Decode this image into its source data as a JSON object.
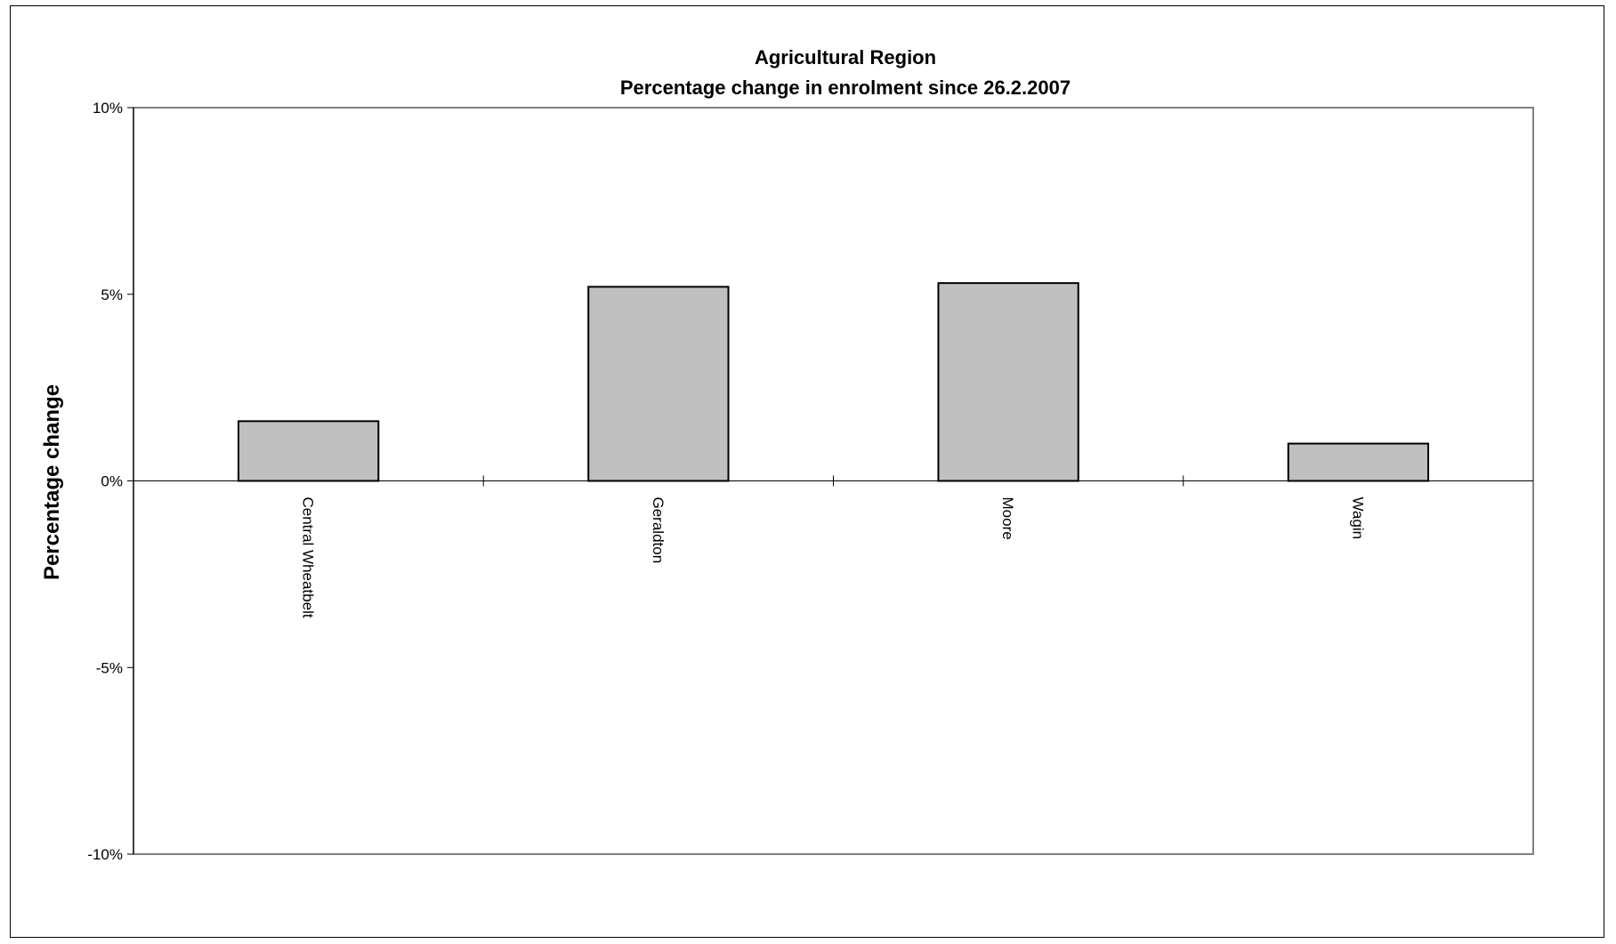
{
  "chart_data": {
    "type": "bar",
    "title": "Agricultural Region",
    "subtitle": "Percentage change in enrolment since 26.2.2007",
    "xlabel": "",
    "ylabel": "Percentage change",
    "categories": [
      "Central Wheatbelt",
      "Geraldton",
      "Moore",
      "Wagin"
    ],
    "values": [
      1.6,
      5.2,
      5.3,
      1.0
    ],
    "ylim": [
      -10,
      10
    ],
    "yticks": [
      10,
      5,
      0,
      -5,
      -10
    ],
    "ytick_labels": [
      "10%",
      "5%",
      "0%",
      "-5%",
      "-10%"
    ],
    "grid": false,
    "legend": "none",
    "colors": {
      "bar_fill": "#c0c0c0",
      "bar_stroke": "#000000",
      "plot_border": "#808080"
    }
  }
}
